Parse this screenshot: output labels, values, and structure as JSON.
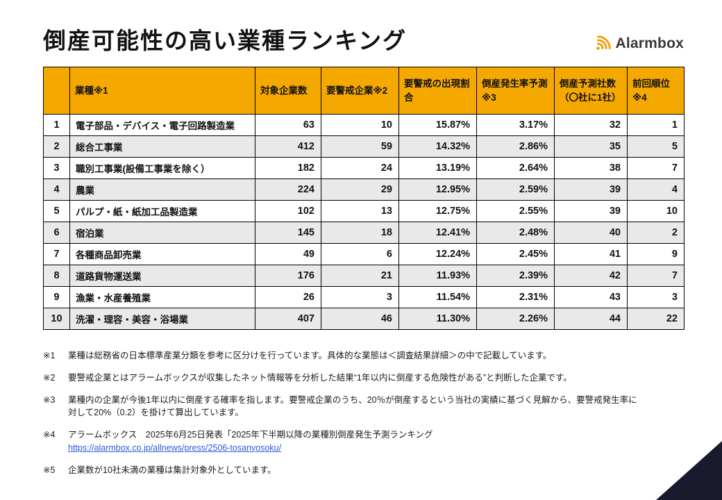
{
  "page": {
    "title": "倒産可能性の高い業種ランキング",
    "brand": "Alarmbox"
  },
  "colors": {
    "header_bg": "#F5A800",
    "row_alt": "#E9E9E9",
    "brand_accent": "#F39800",
    "corner_decoration": "#1A1A2E",
    "link": "#2A5BD7"
  },
  "table": {
    "headers": [
      "",
      "業種※1",
      "対象企業数",
      "要警戒企業※2",
      "要警戒の出現割合",
      "倒産発生率予測※3",
      "倒産予測社数（〇社に1社）",
      "前回順位※4"
    ],
    "rows": [
      {
        "rank": "1",
        "industry": "電子部品・デバイス・電子回路製造業",
        "target_companies": "63",
        "caution_companies": "10",
        "caution_ratio": "15.87%",
        "bankruptcy_rate": "3.17%",
        "predicted_one_in": "32",
        "previous_rank": "1"
      },
      {
        "rank": "2",
        "industry": "総合工事業",
        "target_companies": "412",
        "caution_companies": "59",
        "caution_ratio": "14.32%",
        "bankruptcy_rate": "2.86%",
        "predicted_one_in": "35",
        "previous_rank": "5"
      },
      {
        "rank": "3",
        "industry": "職別工事業(設備工事業を除く）",
        "target_companies": "182",
        "caution_companies": "24",
        "caution_ratio": "13.19%",
        "bankruptcy_rate": "2.64%",
        "predicted_one_in": "38",
        "previous_rank": "7"
      },
      {
        "rank": "4",
        "industry": "農業",
        "target_companies": "224",
        "caution_companies": "29",
        "caution_ratio": "12.95%",
        "bankruptcy_rate": "2.59%",
        "predicted_one_in": "39",
        "previous_rank": "4"
      },
      {
        "rank": "5",
        "industry": "パルプ・紙・紙加工品製造業",
        "target_companies": "102",
        "caution_companies": "13",
        "caution_ratio": "12.75%",
        "bankruptcy_rate": "2.55%",
        "predicted_one_in": "39",
        "previous_rank": "10"
      },
      {
        "rank": "6",
        "industry": "宿泊業",
        "target_companies": "145",
        "caution_companies": "18",
        "caution_ratio": "12.41%",
        "bankruptcy_rate": "2.48%",
        "predicted_one_in": "40",
        "previous_rank": "2"
      },
      {
        "rank": "7",
        "industry": "各種商品卸売業",
        "target_companies": "49",
        "caution_companies": "6",
        "caution_ratio": "12.24%",
        "bankruptcy_rate": "2.45%",
        "predicted_one_in": "41",
        "previous_rank": "9"
      },
      {
        "rank": "8",
        "industry": "道路貨物運送業",
        "target_companies": "176",
        "caution_companies": "21",
        "caution_ratio": "11.93%",
        "bankruptcy_rate": "2.39%",
        "predicted_one_in": "42",
        "previous_rank": "7"
      },
      {
        "rank": "9",
        "industry": "漁業・水産養殖業",
        "target_companies": "26",
        "caution_companies": "3",
        "caution_ratio": "11.54%",
        "bankruptcy_rate": "2.31%",
        "predicted_one_in": "43",
        "previous_rank": "3"
      },
      {
        "rank": "10",
        "industry": "洗濯・理容・美容・浴場業",
        "target_companies": "407",
        "caution_companies": "46",
        "caution_ratio": "11.30%",
        "bankruptcy_rate": "2.26%",
        "predicted_one_in": "44",
        "previous_rank": "22"
      }
    ]
  },
  "footnotes": [
    {
      "label": "※1",
      "text": "業種は総務省の日本標準産業分類を参考に区分けを行っています。具体的な業態は＜調査結果詳細＞の中で記載しています。"
    },
    {
      "label": "※2",
      "text": "要警戒企業とはアラームボックスが収集したネット情報等を分析した結果“1年以内に倒産する危険性がある”と判断した企業です。"
    },
    {
      "label": "※3",
      "text": "業種内の企業が今後1年以内に倒産する確率を指します。要警戒企業のうち、20％が倒産するという当社の実績に基づく見解から、要警戒発生率に対して20%（0.2）を掛けて算出しています。"
    },
    {
      "label": "※4",
      "text": "アラームボックス　2025年6月25日発表「2025年下半期以降の業種別倒産発生予測ランキング",
      "link": "https://alarmbox.co.jp/allnews/press/2506-tosanyosoku/"
    },
    {
      "label": "※5",
      "text": "企業数が10社未満の業種は集計対象外としています。"
    }
  ]
}
